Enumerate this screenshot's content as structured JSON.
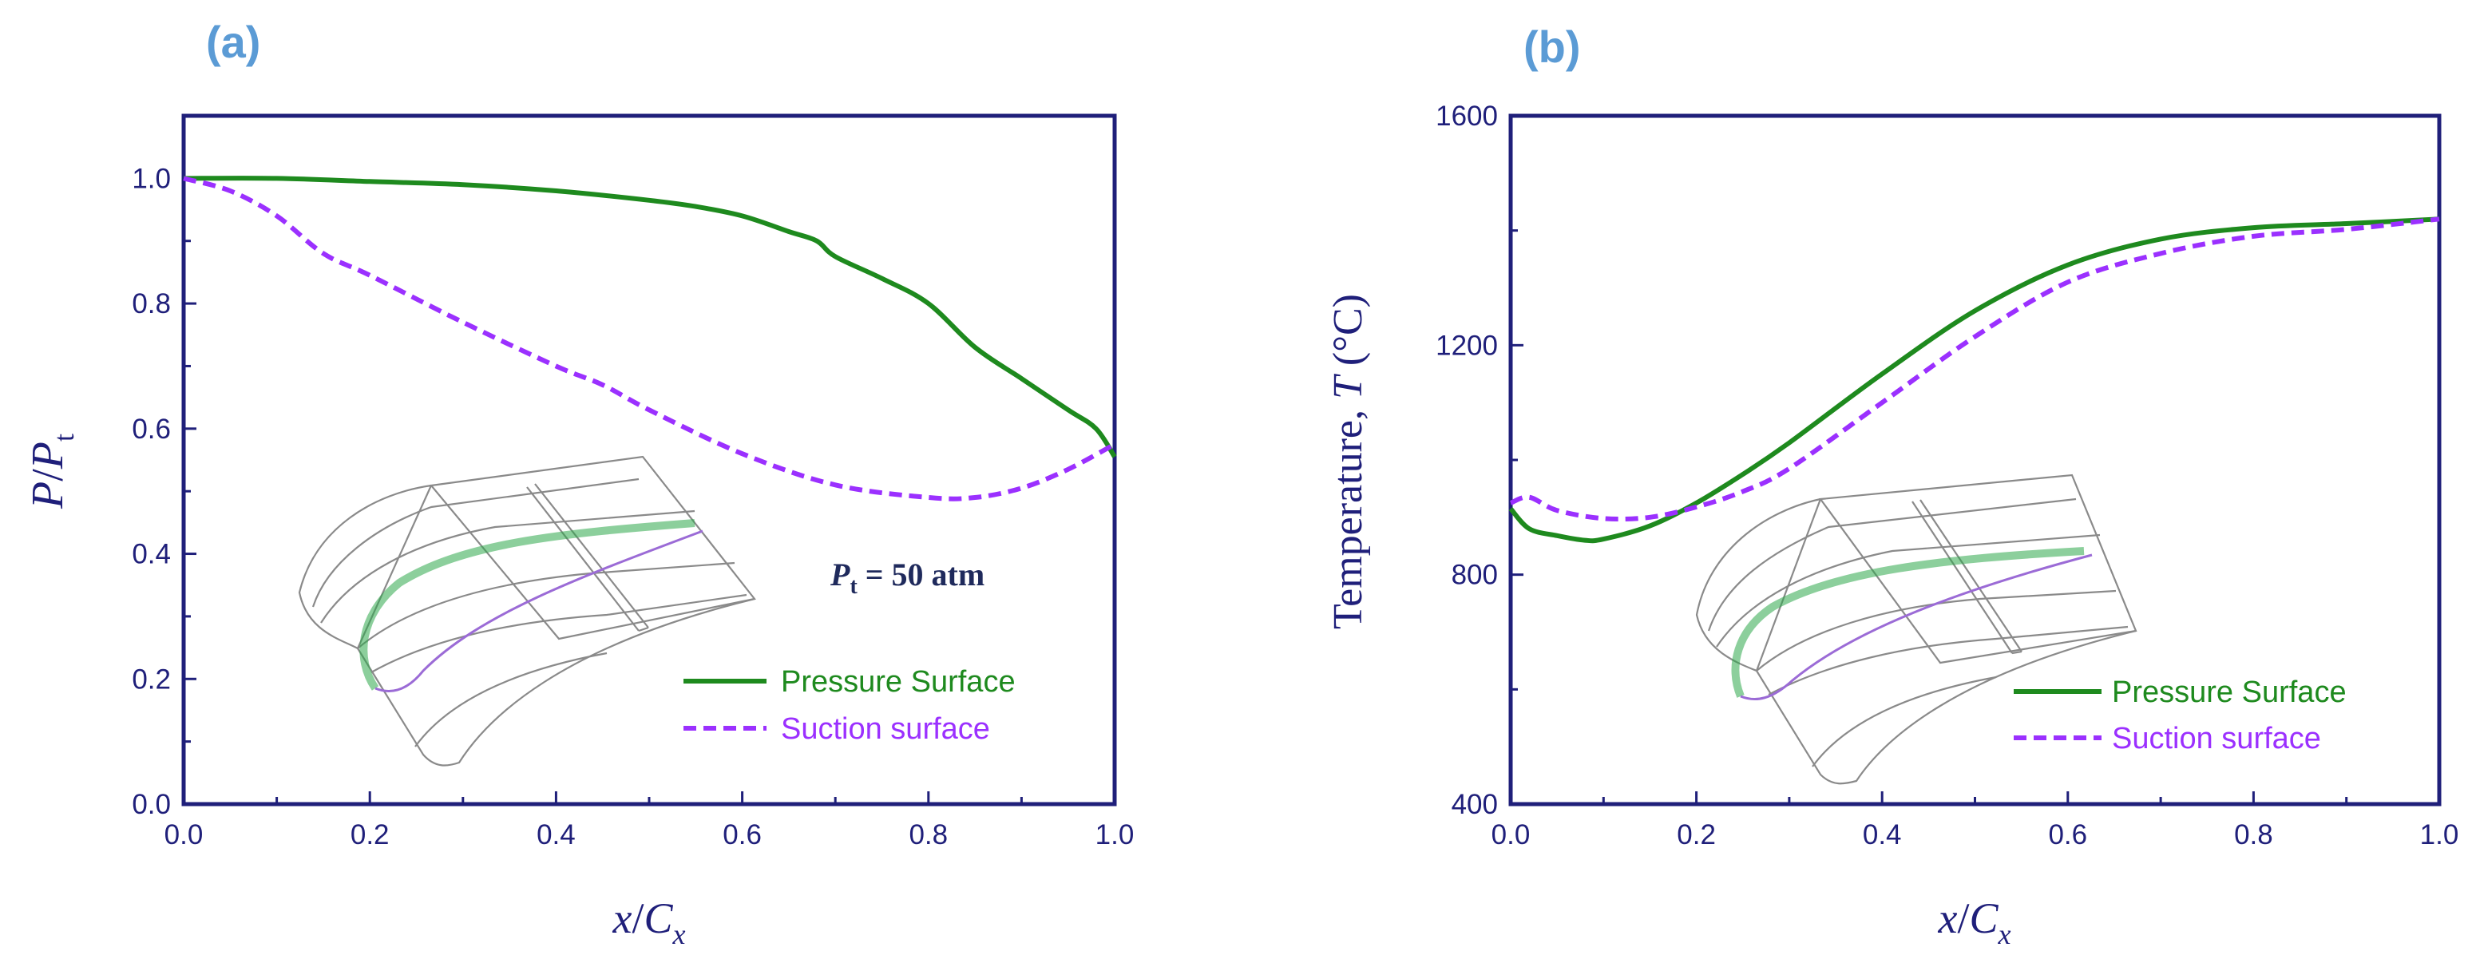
{
  "colors": {
    "axis": "#1f1f7a",
    "pressure": "#1e8a1e",
    "suction": "#9b30ff",
    "panel_letter": "#5b9bd5",
    "inset_outline": "#8a8a8a"
  },
  "chart_data": [
    {
      "type": "line",
      "panel": "(a)",
      "xlabel": {
        "main": "x",
        "sep": "/",
        "cap": "C",
        "sub": "x"
      },
      "ylabel": {
        "main": "P",
        "sep": "/",
        "cap": "P",
        "sub": "t"
      },
      "xlim": [
        0.0,
        1.0
      ],
      "ylim": [
        0.0,
        1.1
      ],
      "xticks": [
        "0.0",
        "0.2",
        "0.4",
        "0.6",
        "0.8",
        "1.0"
      ],
      "xtick_values": [
        0.0,
        0.2,
        0.4,
        0.6,
        0.8,
        1.0
      ],
      "yticks": [
        "0.0",
        "0.2",
        "0.4",
        "0.6",
        "0.8",
        "1.0"
      ],
      "ytick_values": [
        0.0,
        0.2,
        0.4,
        0.6,
        0.8,
        1.0
      ],
      "annotation": {
        "sym": "P",
        "sub": "t",
        "rest": " = 50 atm"
      },
      "series": [
        {
          "name": "Pressure Surface",
          "style": "solid",
          "x": [
            0.0,
            0.1,
            0.2,
            0.3,
            0.4,
            0.5,
            0.55,
            0.6,
            0.65,
            0.68,
            0.7,
            0.75,
            0.8,
            0.85,
            0.9,
            0.95,
            0.98,
            1.0
          ],
          "y": [
            1.0,
            1.0,
            0.995,
            0.99,
            0.98,
            0.965,
            0.955,
            0.94,
            0.915,
            0.9,
            0.875,
            0.84,
            0.8,
            0.73,
            0.68,
            0.63,
            0.6,
            0.555
          ]
        },
        {
          "name": "Suction surface",
          "style": "dashed",
          "x": [
            0.0,
            0.05,
            0.1,
            0.15,
            0.2,
            0.3,
            0.4,
            0.45,
            0.5,
            0.6,
            0.7,
            0.8,
            0.85,
            0.9,
            0.95,
            1.0
          ],
          "y": [
            1.0,
            0.98,
            0.94,
            0.88,
            0.845,
            0.77,
            0.7,
            0.67,
            0.63,
            0.56,
            0.51,
            0.49,
            0.49,
            0.505,
            0.535,
            0.575
          ]
        }
      ]
    },
    {
      "type": "line",
      "panel": "(b)",
      "xlabel": {
        "main": "x",
        "sep": "/",
        "cap": "C",
        "sub": "x"
      },
      "ylabel": {
        "pre": "Temperature, ",
        "sym": "T",
        "unit": " (°C)"
      },
      "xlim": [
        0.0,
        1.0
      ],
      "ylim": [
        400,
        1600
      ],
      "xticks": [
        "0.0",
        "0.2",
        "0.4",
        "0.6",
        "0.8",
        "1.0"
      ],
      "xtick_values": [
        0.0,
        0.2,
        0.4,
        0.6,
        0.8,
        1.0
      ],
      "yticks": [
        "400",
        "800",
        "1200",
        "1600"
      ],
      "ytick_values": [
        400,
        800,
        1200,
        1600
      ],
      "series": [
        {
          "name": "Pressure Surface",
          "style": "solid",
          "x": [
            0.0,
            0.02,
            0.05,
            0.08,
            0.1,
            0.15,
            0.2,
            0.25,
            0.3,
            0.4,
            0.5,
            0.6,
            0.7,
            0.8,
            0.9,
            1.0
          ],
          "y": [
            915,
            880,
            868,
            860,
            862,
            885,
            925,
            975,
            1030,
            1150,
            1260,
            1340,
            1385,
            1405,
            1412,
            1420
          ]
        },
        {
          "name": "Suction surface",
          "style": "dashed",
          "x": [
            0.0,
            0.02,
            0.05,
            0.1,
            0.15,
            0.2,
            0.25,
            0.3,
            0.4,
            0.5,
            0.6,
            0.7,
            0.8,
            0.9,
            1.0
          ],
          "y": [
            925,
            935,
            912,
            898,
            900,
            918,
            945,
            985,
            1100,
            1215,
            1310,
            1360,
            1390,
            1402,
            1420
          ]
        }
      ]
    }
  ]
}
